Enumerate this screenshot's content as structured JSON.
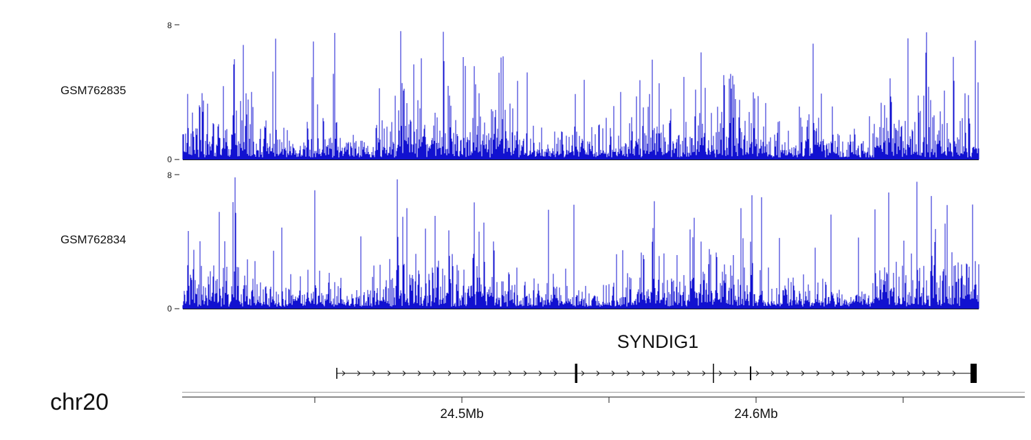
{
  "colors": {
    "signal": "#1111d0",
    "axis": "#333333",
    "gene": "#000000"
  },
  "tracks": [
    {
      "label": "GSM762835",
      "ymax_label": "8",
      "ymin_label": "0"
    },
    {
      "label": "GSM762834",
      "ymax_label": "8",
      "ymin_label": "0"
    }
  ],
  "gene": {
    "name": "SYNDIG1"
  },
  "axis": {
    "chromosome_label": "chr20",
    "tick_labels": [
      "24.5Mb",
      "24.6Mb"
    ]
  },
  "chart_data": {
    "type": "area",
    "title": "",
    "description": "Genome-browser read-coverage histograms for two samples over chr20 ~24.40-24.69 Mb at the SYNDIG1 locus",
    "categories": "genomic position (chr20, Mb)",
    "tracks": [
      {
        "name": "GSM762835",
        "ylim": [
          0,
          8
        ],
        "y_ticks": [
          0,
          8
        ],
        "signal": "dense stochastic per-bin coverage, values 0-8, spikes clipped at 8",
        "seed": 87123
      },
      {
        "name": "GSM762834",
        "ylim": [
          0,
          8
        ],
        "y_ticks": [
          0,
          8
        ],
        "signal": "dense stochastic per-bin coverage, values 0-8, slightly lower mean than track 1",
        "seed": 40517
      }
    ],
    "n_bins": 1159,
    "x_axis": {
      "chromosome": "chr20",
      "tick_labels": [
        "24.5Mb",
        "24.6Mb"
      ],
      "approx_range_mb": [
        24.405,
        24.69
      ],
      "grid": false
    },
    "gene_model": {
      "name": "SYNDIG1",
      "direction": "right",
      "span_mb": [
        24.457,
        24.674
      ],
      "exon_marks_mb": [
        24.457,
        24.539,
        24.586,
        24.598,
        24.674
      ]
    },
    "legend": "none"
  }
}
